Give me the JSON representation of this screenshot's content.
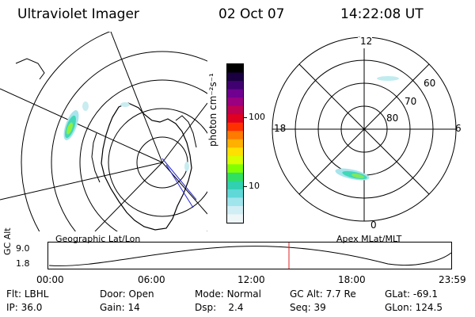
{
  "header": {
    "instrument": "Ultraviolet Imager",
    "date": "02 Oct 07",
    "time": "14:22:08 UT"
  },
  "colorbar": {
    "unit_label": "photon cm⁻²s⁻¹",
    "tick_labels": [
      "100",
      "10"
    ],
    "colors": [
      "#000000",
      "#1a0040",
      "#400070",
      "#700090",
      "#9a0080",
      "#c00050",
      "#e00020",
      "#ff3000",
      "#ff7a00",
      "#ffb000",
      "#ffe000",
      "#d8ff00",
      "#80ff00",
      "#30e060",
      "#30d0b0",
      "#60d8d8",
      "#a0e4ec",
      "#d0eef4",
      "#eef6f8"
    ]
  },
  "left_map": {
    "caption": "Geographic Lat/Lon"
  },
  "right_map": {
    "caption": "Apex MLat/MLT",
    "mlt_labels": {
      "top": "12",
      "left": "18",
      "right": "6",
      "bottom": "0"
    },
    "mlat_labels": [
      "60",
      "70",
      "80"
    ]
  },
  "altitude_plot": {
    "ylabel": "GC Alt",
    "y_ticks": [
      "9.0",
      "1.8"
    ],
    "x_ticks": [
      "00:00",
      "06:00",
      "12:00",
      "18:00",
      "23:59"
    ]
  },
  "info": {
    "row1": [
      {
        "key": "Flt:",
        "value": "LBHL"
      },
      {
        "key": "Door:",
        "value": "Open"
      },
      {
        "key": "Mode:",
        "value": "Normal"
      },
      {
        "key": "GC Alt:",
        "value": "7.7 Re"
      },
      {
        "key": "GLat:",
        "value": "-69.1"
      }
    ],
    "row2": [
      {
        "key": "IP:",
        "value": "36.0"
      },
      {
        "key": "Gain:",
        "value": "14"
      },
      {
        "key": "Dsp:",
        "value": "2.4"
      },
      {
        "key": "Seq:",
        "value": "39"
      },
      {
        "key": "GLon:",
        "value": "124.5"
      }
    ]
  }
}
